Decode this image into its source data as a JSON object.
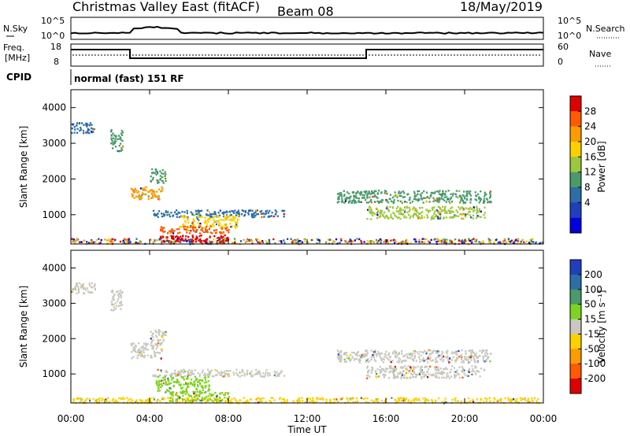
{
  "header": {
    "station": "Christmas Valley East (fitACF)",
    "beam": "Beam 08",
    "date": "18/May/2019"
  },
  "strips": {
    "nsky_label": "N.Sky",
    "nsky_ticks": [
      "10^5",
      "10^0"
    ],
    "nsearch_label": "N.Search",
    "nsearch_ticks": [
      "10^5",
      "10^0"
    ],
    "freq_label": "Freq.",
    "freq_unit": "[MHz]",
    "freq_ticks": [
      "18",
      "8"
    ],
    "nave_label": "Nave",
    "nave_ticks": [
      "60",
      "0"
    ],
    "cpid_label": "CPID",
    "cpid_text": "normal (fast) 151 RF"
  },
  "chart_data": [
    {
      "type": "heatmap",
      "panel": "power",
      "ylabel": "Slant Range [km]",
      "xlabel": "",
      "yticks": [
        1000,
        2000,
        3000,
        4000
      ],
      "ylim": [
        180,
        4500
      ],
      "xlim_hours": [
        0,
        24
      ],
      "colorbar": {
        "label": "Power [dB]",
        "ticks": [
          "28",
          "24",
          "20",
          "16",
          "12",
          "8",
          "4"
        ],
        "colors": [
          "#e00000",
          "#ff5a00",
          "#ff9a00",
          "#ffd000",
          "#9bc83c",
          "#4a9a6a",
          "#2b6ea8",
          "#1f3fbf",
          "#0000e0"
        ]
      },
      "patches": [
        {
          "t": [
            0.0,
            24.0
          ],
          "r": [
            200,
            350
          ],
          "c": "mixed"
        },
        {
          "t": [
            3.0,
            4.6
          ],
          "r": [
            1450,
            1800
          ],
          "c": "#ff9a00"
        },
        {
          "t": [
            4.0,
            4.8
          ],
          "r": [
            1900,
            2300
          ],
          "c": "#4a9a6a"
        },
        {
          "t": [
            4.1,
            10.8
          ],
          "r": [
            950,
            1150
          ],
          "c": "#2b6ea8"
        },
        {
          "t": [
            5.4,
            8.5
          ],
          "r": [
            650,
            1000
          ],
          "c": "#ffd000"
        },
        {
          "t": [
            4.5,
            8.0
          ],
          "r": [
            500,
            700
          ],
          "c": "#ff5a00"
        },
        {
          "t": [
            4.5,
            8.0
          ],
          "r": [
            250,
            450
          ],
          "c": "#e00000"
        },
        {
          "t": [
            13.5,
            21.3
          ],
          "r": [
            1350,
            1700
          ],
          "c": "#4a9a6a"
        },
        {
          "t": [
            15.0,
            21.0
          ],
          "r": [
            900,
            1250
          ],
          "c": "#9bc83c"
        },
        {
          "t": [
            0.0,
            1.2
          ],
          "r": [
            3300,
            3600
          ],
          "c": "#2b6ea8"
        },
        {
          "t": [
            2.0,
            2.6
          ],
          "r": [
            2800,
            3400
          ],
          "c": "#4a9a6a"
        }
      ]
    },
    {
      "type": "heatmap",
      "panel": "velocity",
      "ylabel": "Slant Range [km]",
      "xlabel": "Time UT",
      "xticks": [
        "00:00",
        "04:00",
        "08:00",
        "12:00",
        "16:00",
        "20:00",
        "00:00"
      ],
      "yticks": [
        1000,
        2000,
        3000,
        4000
      ],
      "ylim": [
        180,
        4500
      ],
      "xlim_hours": [
        0,
        24
      ],
      "colorbar": {
        "label": "Velocity [m s⁻¹]",
        "ticks": [
          "200",
          "100",
          "50",
          "15",
          "-15",
          "-50",
          "-100",
          "-200"
        ],
        "colors": [
          "#1f3fbf",
          "#2b6ea8",
          "#4a9a6a",
          "#7ed321",
          "#c8c8c0",
          "#ffd000",
          "#ff9a00",
          "#ff5a00",
          "#e00000"
        ]
      },
      "patches": [
        {
          "t": [
            0.0,
            24.0
          ],
          "r": [
            200,
            350
          ],
          "c": "#ffd000"
        },
        {
          "t": [
            3.0,
            4.6
          ],
          "r": [
            1450,
            1900
          ],
          "c": "#c8c8c0"
        },
        {
          "t": [
            4.0,
            4.8
          ],
          "r": [
            1900,
            2300
          ],
          "c": "#c8c8c0"
        },
        {
          "t": [
            4.1,
            10.8
          ],
          "r": [
            950,
            1150
          ],
          "c": "#c8c8c0"
        },
        {
          "t": [
            4.3,
            7.0
          ],
          "r": [
            500,
            950
          ],
          "c": "#7ed321"
        },
        {
          "t": [
            5.0,
            8.0
          ],
          "r": [
            250,
            500
          ],
          "c": "#7ed321"
        },
        {
          "t": [
            13.5,
            21.3
          ],
          "r": [
            1350,
            1700
          ],
          "c": "#c8c8c0"
        },
        {
          "t": [
            15.0,
            21.0
          ],
          "r": [
            900,
            1250
          ],
          "c": "#c8c8c0"
        },
        {
          "t": [
            0.0,
            1.2
          ],
          "r": [
            3300,
            3600
          ],
          "c": "#c8c8c0"
        },
        {
          "t": [
            2.0,
            2.6
          ],
          "r": [
            2800,
            3400
          ],
          "c": "#c8c8c0"
        }
      ]
    }
  ]
}
